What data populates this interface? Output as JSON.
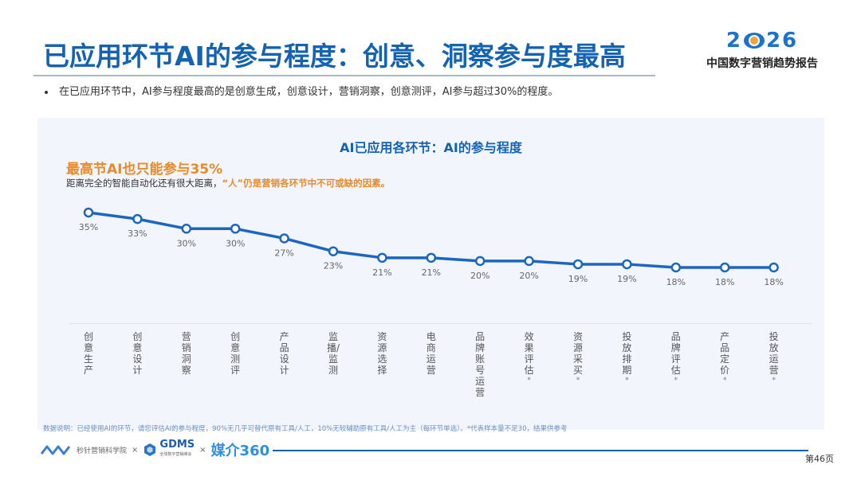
{
  "header": {
    "title": "已应用环节AI的参与程度：创意、洞察参与度最高",
    "brand_year": [
      "2",
      "26"
    ],
    "brand_subtitle": "中国数字营销趋势报告"
  },
  "bullet": "在已应用环节中，AI参与程度最高的是创意生成，创意设计，营销洞察，创意测评，AI参与超过30%的程度。",
  "panel": {
    "highlight": "最高节AI也只能参与35%",
    "note_plain": "距离完全的智能自动化还有很大距离，",
    "note_accent": "“人”仍是营销各环节中不可或缺的因素。"
  },
  "chart_data": {
    "type": "line",
    "title": "AI已应用各环节：AI的参与程度",
    "xlabel": "",
    "ylabel": "",
    "categories": [
      "创意生产",
      "创意设计",
      "营销洞察",
      "创意测评",
      "产品设计",
      "监播/监测",
      "资源选择",
      "电商运营",
      "品牌账号运营",
      "效果评估*",
      "资源采买*",
      "投放排期*",
      "品牌评估*",
      "产品定价*",
      "投放运营*"
    ],
    "series": [
      {
        "name": "AI参与程度",
        "values": [
          35,
          33,
          30,
          30,
          27,
          23,
          21,
          21,
          20,
          20,
          19,
          19,
          18,
          18,
          18
        ],
        "color": "#1a66c2"
      }
    ],
    "value_labels": [
      "35%",
      "33%",
      "30%",
      "30%",
      "27%",
      "23%",
      "21%",
      "21%",
      "20%",
      "20%",
      "19%",
      "19%",
      "18%",
      "18%",
      "18%"
    ],
    "grid": false,
    "legend": "none"
  },
  "categories_display": [
    {
      "text": "创意生产",
      "star": ""
    },
    {
      "text": "创意设计",
      "star": ""
    },
    {
      "text": "营销洞察",
      "star": ""
    },
    {
      "text": "创意测评",
      "star": ""
    },
    {
      "text": "产品设计",
      "star": ""
    },
    {
      "text": "监播/监测",
      "star": ""
    },
    {
      "text": "资源选择",
      "star": ""
    },
    {
      "text": "电商运营",
      "star": ""
    },
    {
      "text": "品牌账号运营",
      "star": ""
    },
    {
      "text": "效果评估",
      "star": "*"
    },
    {
      "text": "资源采买",
      "star": "*"
    },
    {
      "text": "投放排期",
      "star": "*"
    },
    {
      "text": "品牌评估",
      "star": "*"
    },
    {
      "text": "产品定价",
      "star": "*"
    },
    {
      "text": "投放运营",
      "star": "*"
    }
  ],
  "data_note": "数据说明：已经使用AI的环节，请您评估AI的参与程度，90%无几乎可替代原有工具/人工，10%无较辅助原有工具/人工为主（每环节单选）。*代表样本量不足30，结果供参考",
  "footer": {
    "org1": "秒针营销科学院",
    "x1": "×",
    "gdms": "GDMS",
    "gdms_sub": "全球数字营销峰会",
    "x2": "×",
    "mj360": "媒介360",
    "page": "第46页"
  },
  "colors": {
    "title": "#1463b3",
    "accent_orange": "#e88a2a",
    "line": "#1a66c2",
    "panel_bg": "#f3f5fd"
  }
}
